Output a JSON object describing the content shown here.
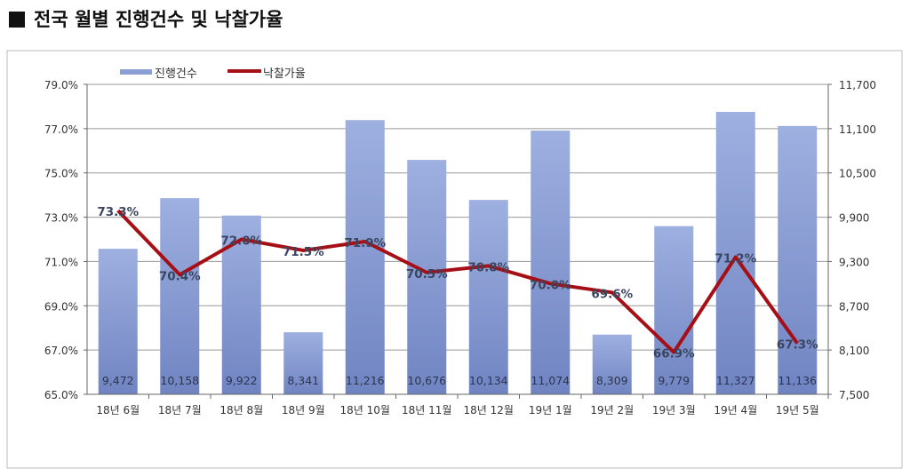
{
  "page_title": "전국 월별 진행건수 및 낙찰가율",
  "chart_data": {
    "type": "bar+line",
    "title": "전국 월별 진행건수 및 낙찰가율",
    "categories": [
      "18년 6월",
      "18년 7월",
      "18년 8월",
      "18년 9월",
      "18년 10월",
      "18년 11월",
      "18년 12월",
      "19년 1월",
      "19년 2월",
      "19년 3월",
      "19년 4월",
      "19년 5월"
    ],
    "series": [
      {
        "name": "진행건수",
        "type": "bar",
        "axis": "right",
        "color": "#8c9fd4",
        "values": [
          9472,
          10158,
          9922,
          8341,
          11216,
          10676,
          10134,
          11074,
          8309,
          9779,
          11327,
          11136
        ],
        "labels": [
          "9,472",
          "10,158",
          "9,922",
          "8,341",
          "11,216",
          "10,676",
          "10,134",
          "11,074",
          "8,309",
          "9,779",
          "11,327",
          "11,136"
        ]
      },
      {
        "name": "낙찰가율",
        "type": "line",
        "axis": "left",
        "color": "#a50f15",
        "values": [
          73.3,
          70.4,
          72.0,
          71.5,
          71.9,
          70.5,
          70.8,
          70.0,
          69.6,
          66.9,
          71.2,
          67.3
        ],
        "labels": [
          "73.3%",
          "70.4%",
          "72.0%",
          "71.5%",
          "71.9%",
          "70.5%",
          "70.8%",
          "70.0%",
          "69.6%",
          "66.9%",
          "71.2%",
          "67.3%"
        ]
      }
    ],
    "y_left": {
      "range": [
        65,
        79
      ],
      "ticks": [
        "65.0%",
        "67.0%",
        "69.0%",
        "71.0%",
        "73.0%",
        "75.0%",
        "77.0%",
        "79.0%"
      ]
    },
    "y_right": {
      "range": [
        7500,
        11700
      ],
      "ticks": [
        "7,500",
        "8,100",
        "8,700",
        "9,300",
        "9,900",
        "10,500",
        "11,100",
        "11,700"
      ]
    },
    "grid": true,
    "legend": "top-left"
  }
}
